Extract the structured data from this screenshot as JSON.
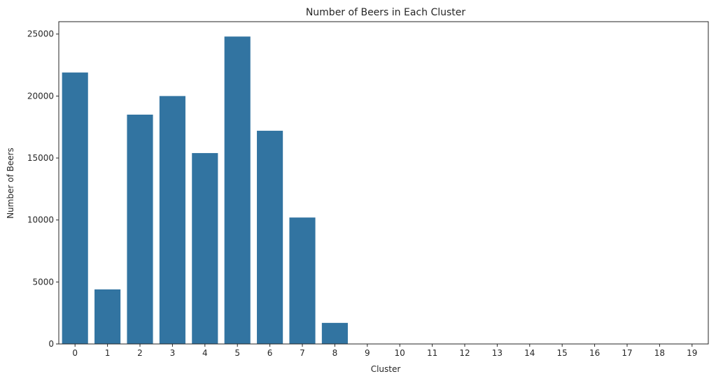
{
  "chart_data": {
    "type": "bar",
    "title": "Number of Beers in Each Cluster",
    "xlabel": "Cluster",
    "ylabel": "Number of Beers",
    "categories": [
      "0",
      "1",
      "2",
      "3",
      "4",
      "5",
      "6",
      "7",
      "8",
      "9",
      "10",
      "11",
      "12",
      "13",
      "14",
      "15",
      "16",
      "17",
      "18",
      "19"
    ],
    "values": [
      21900,
      4400,
      18500,
      20000,
      15400,
      24800,
      17200,
      10200,
      1700,
      0,
      0,
      0,
      0,
      0,
      0,
      0,
      0,
      0,
      0,
      0
    ],
    "ylim": [
      0,
      26000
    ],
    "yticks": [
      0,
      5000,
      10000,
      15000,
      20000,
      25000
    ],
    "bar_color": "#3274a1",
    "grid": false,
    "legend": "none"
  }
}
